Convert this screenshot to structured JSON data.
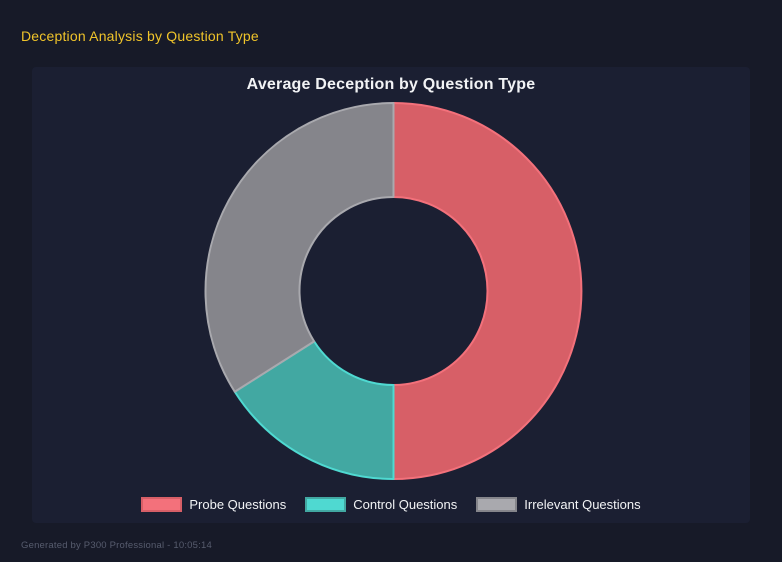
{
  "window": {
    "header": "Deception Analysis by Question Type",
    "footer": "Generated by P300 Professional - 10:05:14"
  },
  "colors": {
    "page_background": "#171a28",
    "panel_background": "#1b1f32",
    "header_text": "#f0c42a",
    "chart_title_text": "#f2f3f5",
    "legend_text": "#f2f3f5",
    "footer_text": "#575c6e"
  },
  "chart_data": {
    "type": "pie",
    "subtype": "donut",
    "title": "Average Deception by Question Type",
    "inner_radius_ratio": 0.5,
    "start_angle_deg": 0,
    "direction": "clockwise",
    "legend_position": "bottom",
    "grid": false,
    "segments": [
      {
        "label": "Probe Questions",
        "percent": 50,
        "fill": "#d75f67",
        "border": "#f3717b"
      },
      {
        "label": "Control Questions",
        "percent": 16,
        "fill": "#42a8a2",
        "border": "#4fd9d1"
      },
      {
        "label": "Irrelevant Questions",
        "percent": 34,
        "fill": "#85858b",
        "border": "#a9a9ae"
      }
    ]
  }
}
